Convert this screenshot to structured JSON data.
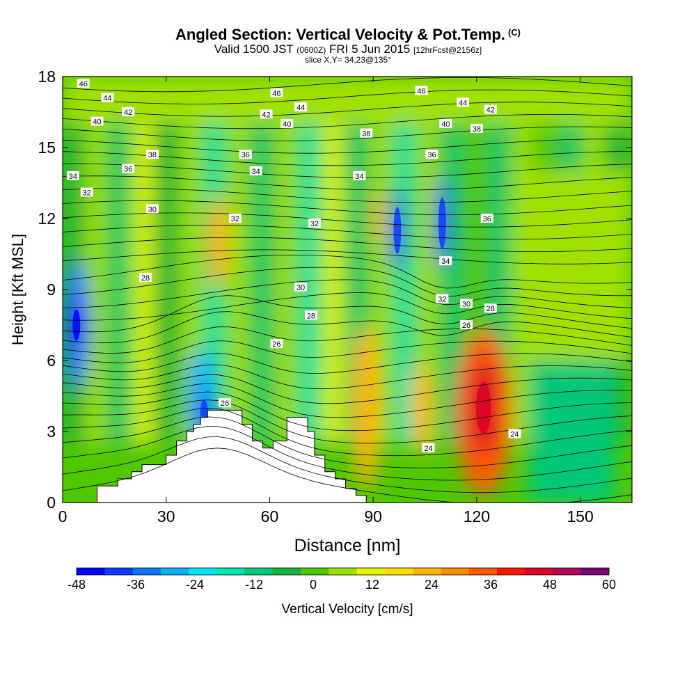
{
  "header": {
    "title": "Angled Section: Vertical Velocity & Pot.Temp.",
    "copyright": "(C)",
    "valid_prefix": "Valid 1500 JST",
    "valid_utc": "(0600Z)",
    "valid_date": "FRI 5 Jun 2015",
    "forecast": "[12hrFcst@2156z]",
    "slice": "slice X,Y= 34,23@135°"
  },
  "chart_data": {
    "type": "heatmap",
    "xlabel": "Distance [nm]",
    "ylabel": "Height [Kft MSL]",
    "xlim": [
      0,
      165
    ],
    "ylim": [
      0,
      18
    ],
    "x_ticks": [
      "0",
      "30",
      "60",
      "90",
      "120",
      "150"
    ],
    "y_ticks": [
      "0",
      "3",
      "6",
      "9",
      "12",
      "15",
      "18"
    ],
    "colorbar": {
      "label": "Vertical Velocity [cm/s]",
      "ticks": [
        "-48",
        "-36",
        "-24",
        "-12",
        "0",
        "12",
        "24",
        "36",
        "48",
        "60"
      ],
      "levels": [
        -48,
        -42,
        -36,
        -30,
        -24,
        -18,
        -12,
        -6,
        0,
        6,
        12,
        18,
        24,
        30,
        36,
        42,
        48,
        54,
        60
      ],
      "colors": [
        "#0000ff",
        "#0a3cff",
        "#0078ff",
        "#00b4ff",
        "#00e6ff",
        "#00e6b4",
        "#00c878",
        "#14b43c",
        "#50c800",
        "#a0e100",
        "#e6f500",
        "#ffdc00",
        "#ffb400",
        "#ff8c00",
        "#ff5a00",
        "#ff1400",
        "#dc0028",
        "#b4005a",
        "#780078"
      ]
    },
    "terrain": [
      [
        0,
        0
      ],
      [
        10,
        0
      ],
      [
        10,
        0.7
      ],
      [
        16,
        0.7
      ],
      [
        16,
        1
      ],
      [
        20,
        1
      ],
      [
        20,
        1.3
      ],
      [
        23,
        1.3
      ],
      [
        23,
        1.6
      ],
      [
        30,
        1.6
      ],
      [
        30,
        2
      ],
      [
        33,
        2
      ],
      [
        33,
        2.6
      ],
      [
        36,
        2.6
      ],
      [
        36,
        3
      ],
      [
        38,
        3
      ],
      [
        38,
        3.3
      ],
      [
        40,
        3.3
      ],
      [
        40,
        3.6
      ],
      [
        42,
        3.6
      ],
      [
        42,
        3.9
      ],
      [
        52,
        3.9
      ],
      [
        52,
        3.3
      ],
      [
        55,
        3.3
      ],
      [
        55,
        2.6
      ],
      [
        58,
        2.6
      ],
      [
        58,
        2.3
      ],
      [
        61,
        2.3
      ],
      [
        61,
        2.6
      ],
      [
        65,
        2.6
      ],
      [
        65,
        3.6
      ],
      [
        71,
        3.6
      ],
      [
        71,
        3
      ],
      [
        73,
        3
      ],
      [
        73,
        2
      ],
      [
        76,
        2
      ],
      [
        76,
        1.3
      ],
      [
        79,
        1.3
      ],
      [
        79,
        1
      ],
      [
        82,
        1
      ],
      [
        82,
        0.6
      ],
      [
        85,
        0.6
      ],
      [
        85,
        0.3
      ],
      [
        88,
        0.3
      ],
      [
        88,
        0
      ],
      [
        165,
        0
      ]
    ],
    "velocity_features": [
      {
        "x": 4,
        "y": 7.5,
        "rx": 4,
        "ry": 2.8,
        "value": -36
      },
      {
        "x": 4,
        "y": 7.5,
        "rx": 2,
        "ry": 1.2,
        "value": -48
      },
      {
        "x": 40,
        "y": 4.5,
        "rx": 4,
        "ry": 2,
        "value": -30
      },
      {
        "x": 41,
        "y": 3.8,
        "rx": 2,
        "ry": 1,
        "value": -42
      },
      {
        "x": 97,
        "y": 11.5,
        "rx": 2,
        "ry": 1.8,
        "value": -42
      },
      {
        "x": 110,
        "y": 11.8,
        "rx": 2,
        "ry": 2,
        "value": -42
      },
      {
        "x": 122,
        "y": 3.8,
        "rx": 8,
        "ry": 3.5,
        "value": 36
      },
      {
        "x": 122,
        "y": 4,
        "rx": 4,
        "ry": 2,
        "value": 48
      },
      {
        "x": 88,
        "y": 4,
        "rx": 4,
        "ry": 3.5,
        "value": 24
      },
      {
        "x": 104,
        "y": 4,
        "rx": 3,
        "ry": 2,
        "value": 24
      },
      {
        "x": 91,
        "y": 12,
        "rx": 1.5,
        "ry": 1.2,
        "value": 24
      },
      {
        "x": 45,
        "y": 11,
        "rx": 3,
        "ry": 2,
        "value": 24
      }
    ],
    "contour_labels": [
      {
        "x": 6,
        "y": 17.7,
        "text": "46"
      },
      {
        "x": 13,
        "y": 17.1,
        "text": "44"
      },
      {
        "x": 19,
        "y": 16.5,
        "text": "42"
      },
      {
        "x": 10,
        "y": 16.1,
        "text": "40"
      },
      {
        "x": 26,
        "y": 14.7,
        "text": "38"
      },
      {
        "x": 19,
        "y": 14.1,
        "text": "36"
      },
      {
        "x": 3,
        "y": 13.8,
        "text": "34"
      },
      {
        "x": 7,
        "y": 13.1,
        "text": "32"
      },
      {
        "x": 26,
        "y": 12.4,
        "text": "30"
      },
      {
        "x": 24,
        "y": 9.5,
        "text": "28"
      },
      {
        "x": 47,
        "y": 4.2,
        "text": "26"
      },
      {
        "x": 53,
        "y": 14.7,
        "text": "36"
      },
      {
        "x": 56,
        "y": 14,
        "text": "34"
      },
      {
        "x": 50,
        "y": 12,
        "text": "32"
      },
      {
        "x": 62,
        "y": 17.3,
        "text": "46"
      },
      {
        "x": 69,
        "y": 16.7,
        "text": "44"
      },
      {
        "x": 59,
        "y": 16.4,
        "text": "42"
      },
      {
        "x": 65,
        "y": 16,
        "text": "40"
      },
      {
        "x": 88,
        "y": 15.6,
        "text": "38"
      },
      {
        "x": 86,
        "y": 13.8,
        "text": "34"
      },
      {
        "x": 73,
        "y": 11.8,
        "text": "32"
      },
      {
        "x": 69,
        "y": 9.1,
        "text": "30"
      },
      {
        "x": 72,
        "y": 7.9,
        "text": "28"
      },
      {
        "x": 62,
        "y": 6.7,
        "text": "26"
      },
      {
        "x": 104,
        "y": 17.4,
        "text": "46"
      },
      {
        "x": 116,
        "y": 16.9,
        "text": "44"
      },
      {
        "x": 124,
        "y": 16.6,
        "text": "42"
      },
      {
        "x": 111,
        "y": 16,
        "text": "40"
      },
      {
        "x": 120,
        "y": 15.8,
        "text": "38"
      },
      {
        "x": 107,
        "y": 14.7,
        "text": "36"
      },
      {
        "x": 123,
        "y": 12,
        "text": "36"
      },
      {
        "x": 111,
        "y": 10.2,
        "text": "34"
      },
      {
        "x": 110,
        "y": 8.6,
        "text": "32"
      },
      {
        "x": 117,
        "y": 8.4,
        "text": "30"
      },
      {
        "x": 124,
        "y": 8.2,
        "text": "28"
      },
      {
        "x": 117,
        "y": 7.5,
        "text": "26"
      },
      {
        "x": 106,
        "y": 2.3,
        "text": "24"
      },
      {
        "x": 131,
        "y": 2.9,
        "text": "24"
      }
    ]
  }
}
